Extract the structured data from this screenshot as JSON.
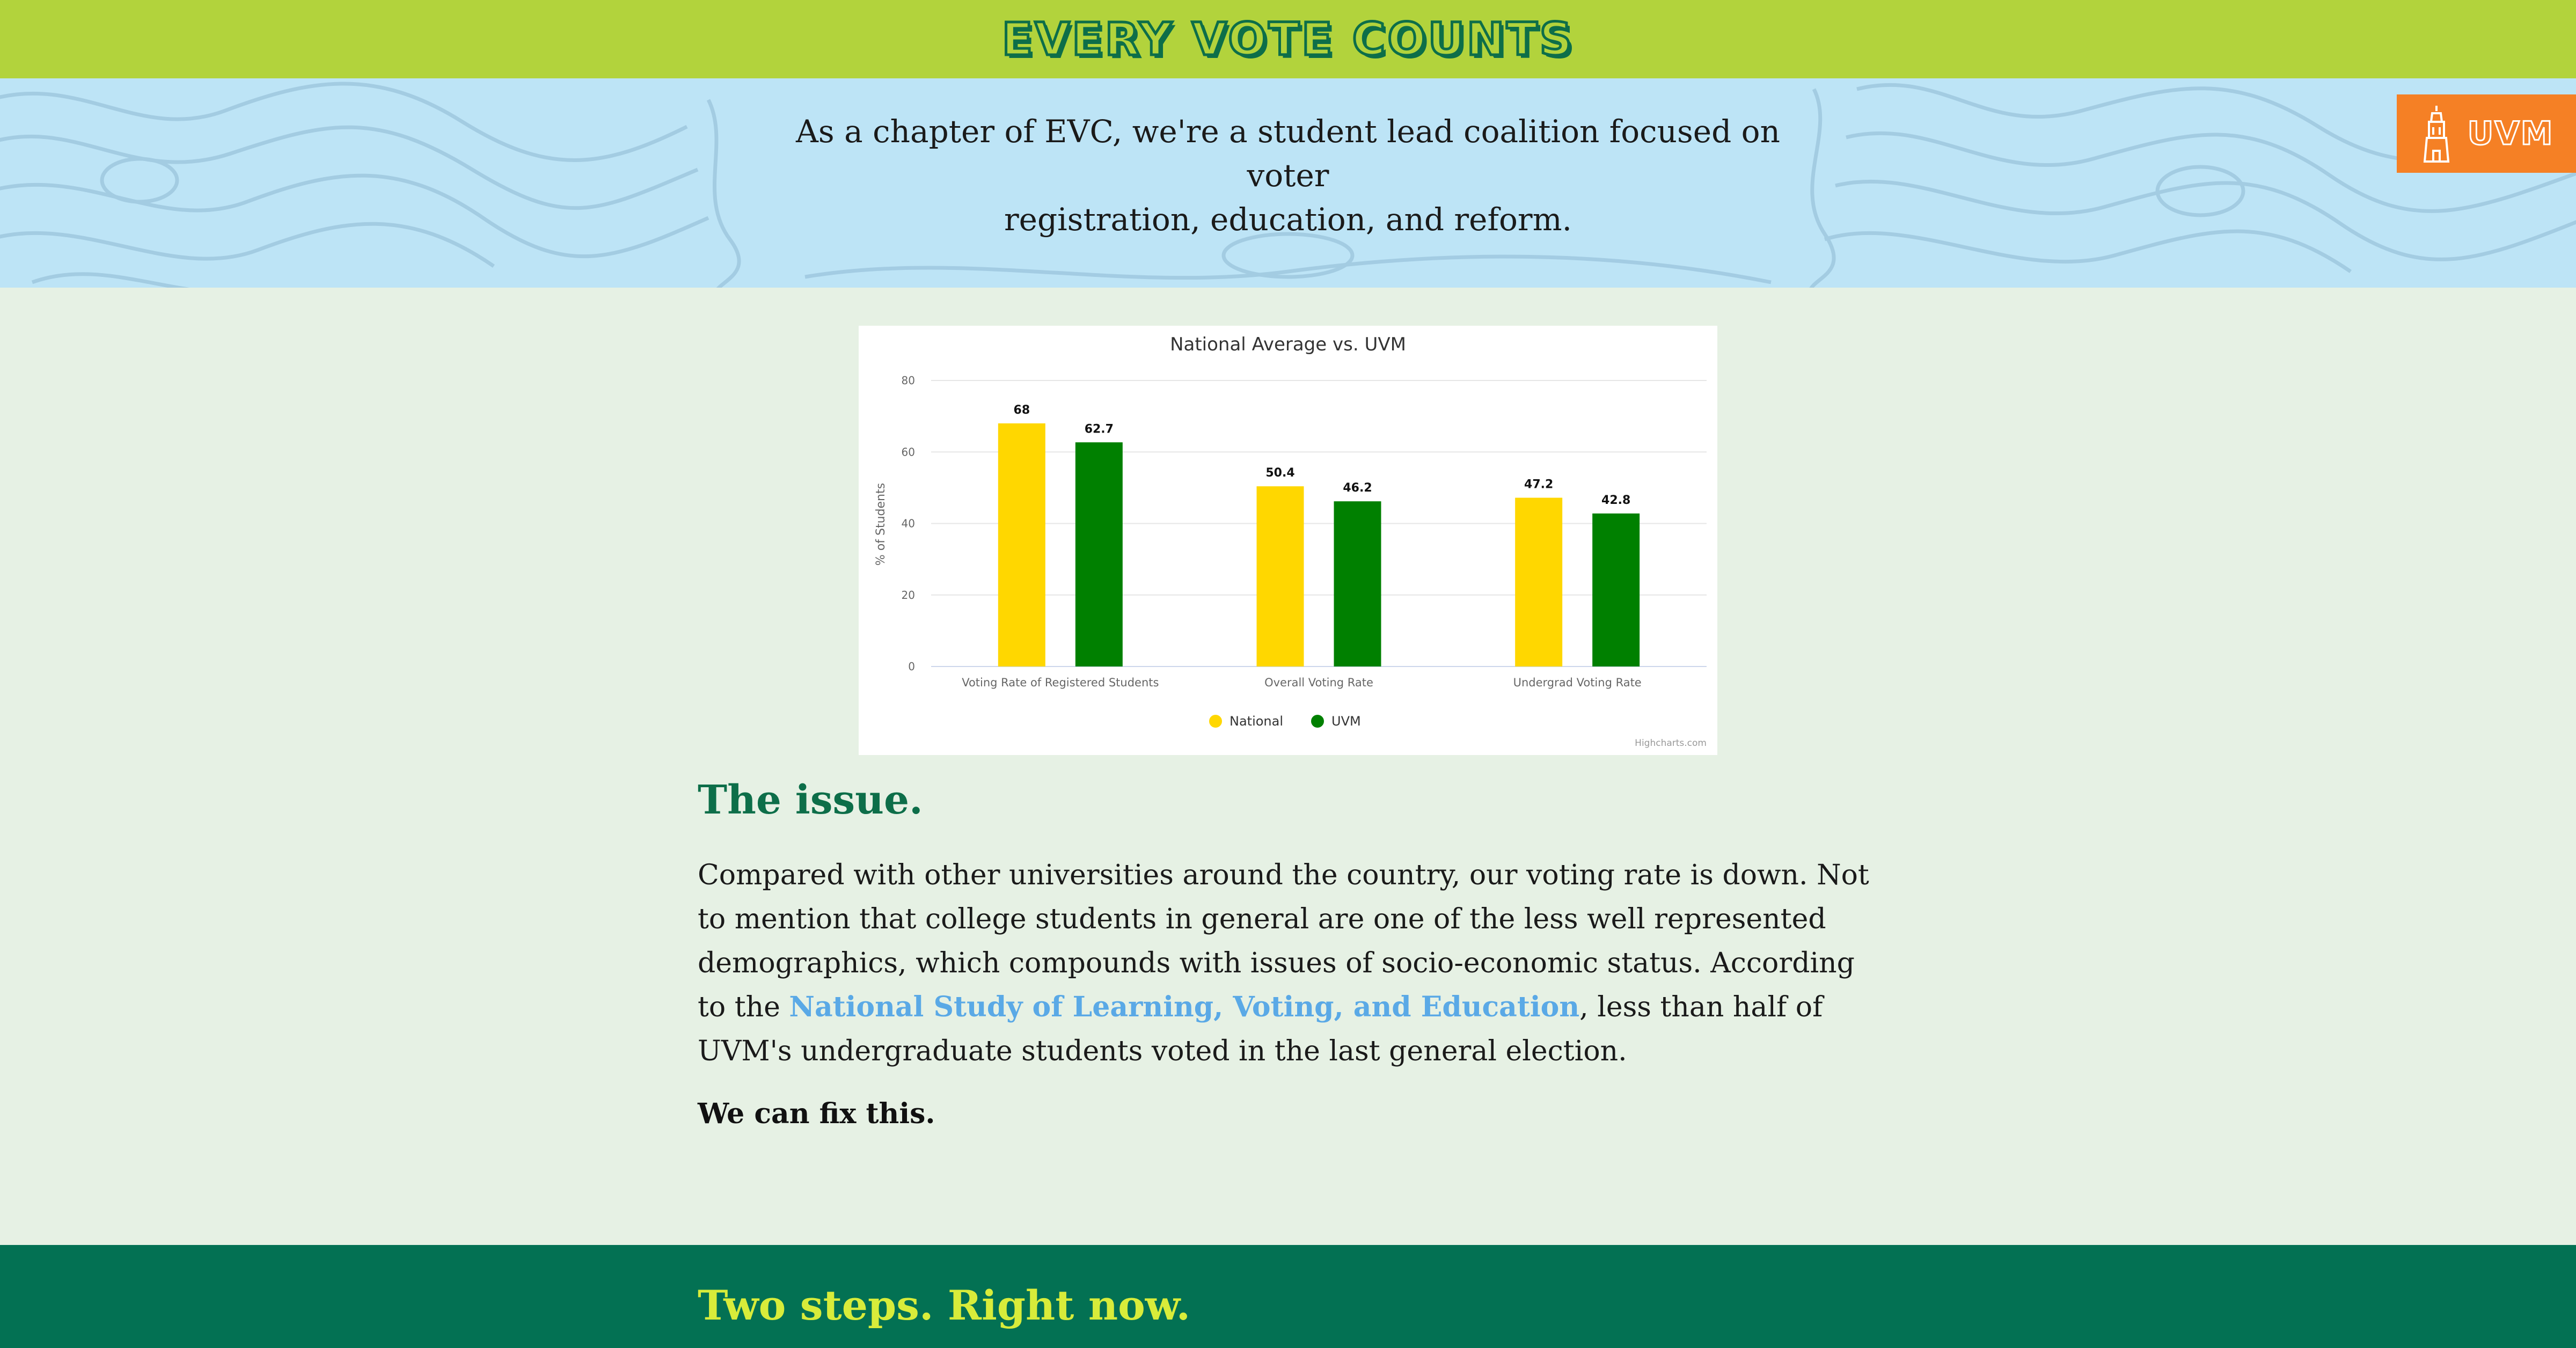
{
  "header": {
    "title": "Every Vote Counts"
  },
  "hero": {
    "line1": "As a chapter of EVC, we're a student lead coalition focused on voter",
    "line2": "registration, education, and reform.",
    "badge_label": "UVM",
    "badge_icon": "tower-icon"
  },
  "chart_data": {
    "type": "bar",
    "title": "National Average vs. UVM",
    "ylabel": "% of Students",
    "xlabel": "",
    "ylim": [
      0,
      80
    ],
    "yticks": [
      0,
      20,
      40,
      60,
      80
    ],
    "categories": [
      "Voting Rate of Registered Students",
      "Overall Voting Rate",
      "Undergrad Voting Rate"
    ],
    "series": [
      {
        "name": "National",
        "color": "#ffd700",
        "values": [
          68,
          50.4,
          47.2
        ]
      },
      {
        "name": "UVM",
        "color": "#008000",
        "values": [
          62.7,
          46.2,
          42.8
        ]
      }
    ],
    "grid": true,
    "legend": "bottom-center",
    "credit": "Highcharts.com"
  },
  "issue": {
    "heading": "The issue.",
    "text_before": "Compared with other universities around the country, our voting rate is down. Not to mention that college students in general are one of the less well represented demographics, which compounds with issues of socio-economic status. According to the ",
    "link": "National Study of Learning, Voting, and Education",
    "text_after": ", less than half of UVM's undergraduate students voted in the last general election.",
    "fix": "We can fix this."
  },
  "steps": {
    "heading": "Two steps. Right now."
  }
}
